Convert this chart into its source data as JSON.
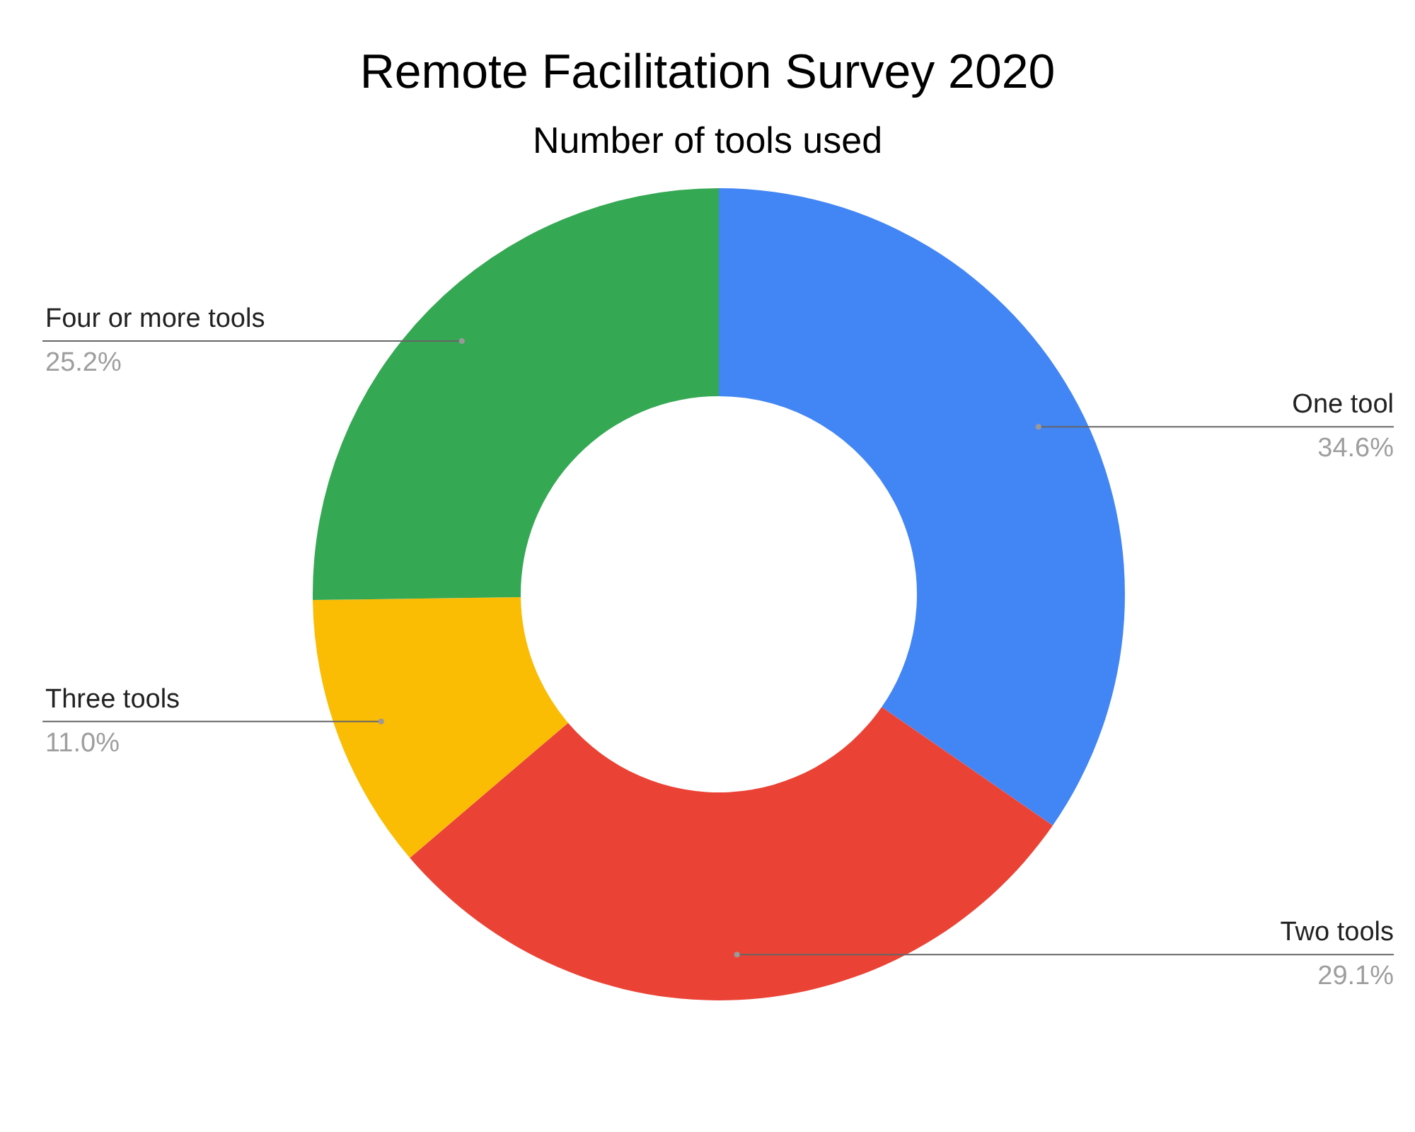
{
  "chart_data": {
    "type": "donut",
    "title": "Remote Facilitation Survey 2020",
    "subtitle": "Number of tools used",
    "categories": [
      "One tool",
      "Two tools",
      "Three tools",
      "Four or more tools"
    ],
    "values": [
      34.6,
      29.1,
      11.0,
      25.2
    ],
    "colors": [
      "#4285f4",
      "#ea4335",
      "#fbbc04",
      "#34a853"
    ],
    "value_labels": [
      "34.6%",
      "29.1%",
      "11.0%",
      "25.2%"
    ]
  }
}
